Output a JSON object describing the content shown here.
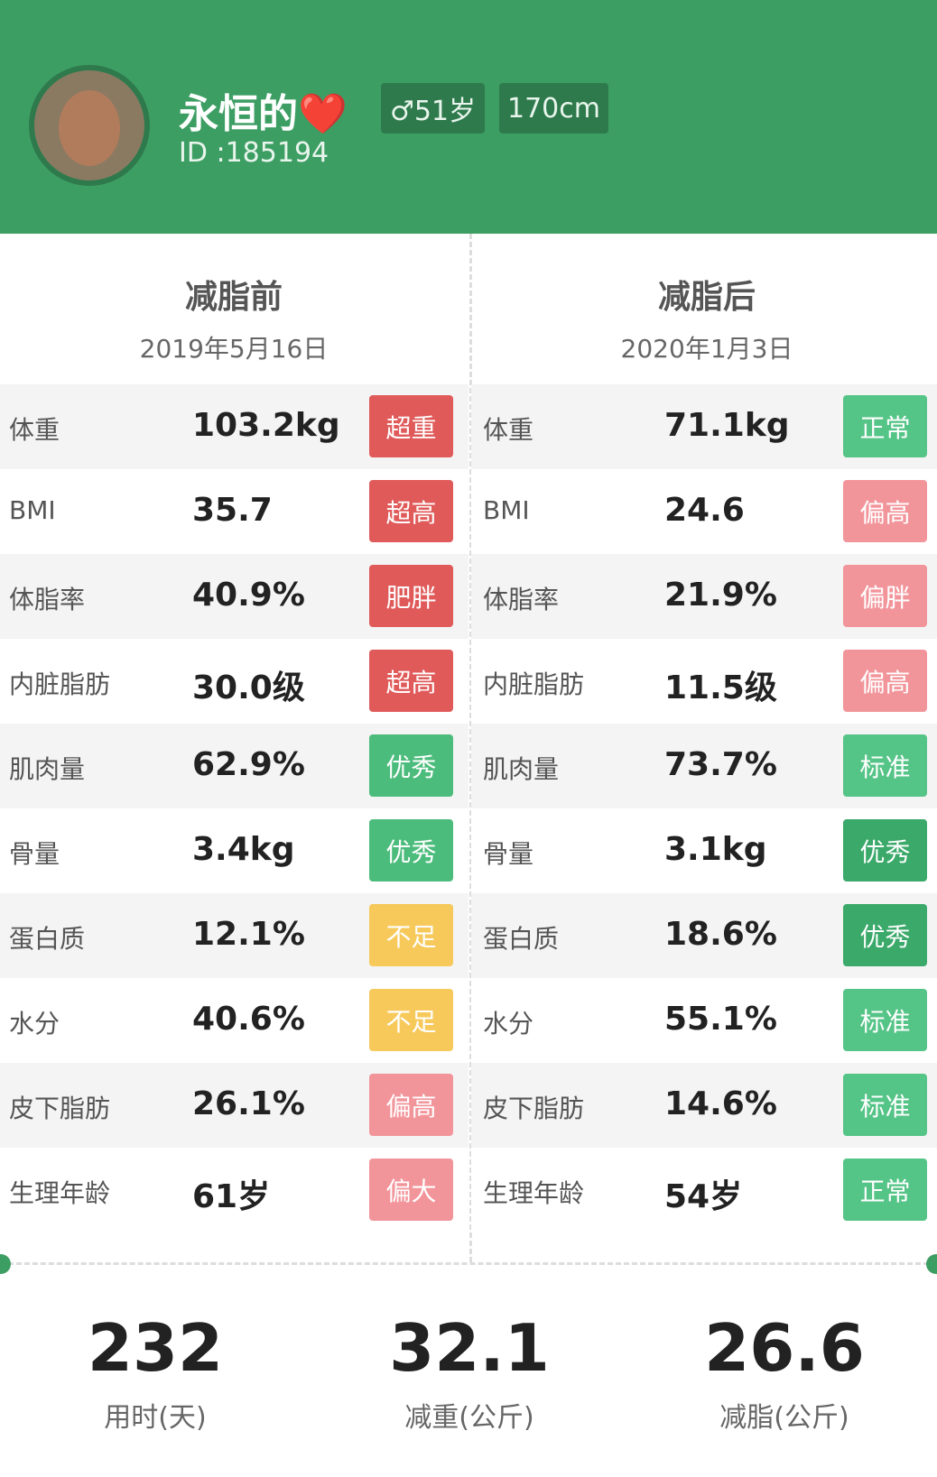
{
  "header": {
    "name": "永恒的❤️",
    "id": "ID :185194",
    "gender_age": "♂51岁",
    "height": "170cm"
  },
  "columns": [
    {
      "title": "减脂前",
      "date": "2019年5月16日",
      "rows": [
        {
          "label": "体重",
          "value": "103.2kg",
          "status": "超重",
          "color": "#e05a5a"
        },
        {
          "label": "BMI",
          "value": "35.7",
          "status": "超高",
          "color": "#e05a5a"
        },
        {
          "label": "体脂率",
          "value": "40.9%",
          "status": "肥胖",
          "color": "#e05a5a"
        },
        {
          "label": "内脏脂肪",
          "value": "30.0级",
          "status": "超高",
          "color": "#e05a5a"
        },
        {
          "label": "肌肉量",
          "value": "62.9%",
          "status": "优秀",
          "color": "#4cbc7c"
        },
        {
          "label": "骨量",
          "value": "3.4kg",
          "status": "优秀",
          "color": "#4cbc7c"
        },
        {
          "label": "蛋白质",
          "value": "12.1%",
          "status": "不足",
          "color": "#f6c95a"
        },
        {
          "label": "水分",
          "value": "40.6%",
          "status": "不足",
          "color": "#f6c95a"
        },
        {
          "label": "皮下脂肪",
          "value": "26.1%",
          "status": "偏高",
          "color": "#f2959b"
        },
        {
          "label": "生理年龄",
          "value": "61岁",
          "status": "偏大",
          "color": "#f2959b"
        }
      ]
    },
    {
      "title": "减脂后",
      "date": "2020年1月3日",
      "rows": [
        {
          "label": "体重",
          "value": "71.1kg",
          "status": "正常",
          "color": "#55c487"
        },
        {
          "label": "BMI",
          "value": "24.6",
          "status": "偏高",
          "color": "#f2959b"
        },
        {
          "label": "体脂率",
          "value": "21.9%",
          "status": "偏胖",
          "color": "#f2959b"
        },
        {
          "label": "内脏脂肪",
          "value": "11.5级",
          "status": "偏高",
          "color": "#f2959b"
        },
        {
          "label": "肌肉量",
          "value": "73.7%",
          "status": "标准",
          "color": "#55c487"
        },
        {
          "label": "骨量",
          "value": "3.1kg",
          "status": "优秀",
          "color": "#3aa96a"
        },
        {
          "label": "蛋白质",
          "value": "18.6%",
          "status": "优秀",
          "color": "#3aa96a"
        },
        {
          "label": "水分",
          "value": "55.1%",
          "status": "标准",
          "color": "#55c487"
        },
        {
          "label": "皮下脂肪",
          "value": "14.6%",
          "status": "标准",
          "color": "#55c487"
        },
        {
          "label": "生理年龄",
          "value": "54岁",
          "status": "正常",
          "color": "#55c487"
        }
      ]
    }
  ],
  "summary": [
    {
      "value": "232",
      "label": "用时(天)"
    },
    {
      "value": "32.1",
      "label": "减重(公斤)"
    },
    {
      "value": "26.6",
      "label": "减脂(公斤)"
    }
  ]
}
